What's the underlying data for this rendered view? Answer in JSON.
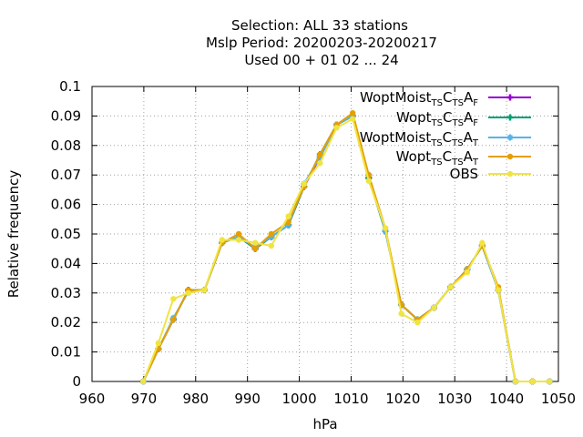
{
  "title_lines": [
    "Selection: ALL      33 stations",
    "Mslp  Period: 20200203-20200217",
    "Used  00 + 01 02 ... 24"
  ],
  "chart_data": {
    "type": "line",
    "xlabel": "hPa",
    "ylabel": "Relative frequency",
    "xlim": [
      960,
      1050
    ],
    "ylim": [
      0,
      0.1
    ],
    "xticks": [
      960,
      970,
      980,
      990,
      1000,
      1010,
      1020,
      1030,
      1040,
      1050
    ],
    "yticks": [
      0,
      0.01,
      0.02,
      0.03,
      0.04,
      0.05,
      0.06,
      0.07,
      0.08,
      0.09,
      0.1
    ],
    "grid": true,
    "legend_position": "top-right",
    "series": [
      {
        "name": "WoptMoist_TSC_TSA_F",
        "legend": {
          "main": "WoptMoist",
          "parts": [
            [
              "TS",
              "sub"
            ],
            [
              "C",
              "main"
            ],
            [
              "TS",
              "sub"
            ],
            [
              "A",
              "main"
            ],
            [
              "F",
              "sub"
            ]
          ]
        },
        "color": "#9400d3",
        "marker": "cross",
        "x": [
          969.9,
          972.8,
          975.7,
          978.6,
          981.7,
          985.1,
          988.3,
          991.5,
          994.6,
          997.9,
          1000.9,
          1004.0,
          1007.2,
          1010.3,
          1013.4,
          1016.6,
          1019.7,
          1022.8,
          1026.0,
          1029.2,
          1032.4,
          1035.3,
          1038.4,
          1041.7,
          1045.0,
          1048.3
        ],
        "y": [
          0.0,
          0.011,
          0.021,
          0.031,
          0.031,
          0.047,
          0.049,
          0.045,
          0.049,
          0.053,
          0.066,
          0.076,
          0.087,
          0.09,
          0.069,
          0.051,
          0.026,
          0.021,
          0.025,
          0.032,
          0.038,
          0.046,
          0.031,
          0.0,
          0.0,
          0.0
        ]
      },
      {
        "name": "Wopt_TSC_TSA_F",
        "legend": {
          "main": "Wopt",
          "parts": [
            [
              "TS",
              "sub"
            ],
            [
              "C",
              "main"
            ],
            [
              "TS",
              "sub"
            ],
            [
              "A",
              "main"
            ],
            [
              "F",
              "sub"
            ]
          ]
        },
        "color": "#009e73",
        "marker": "cross",
        "x": [
          969.9,
          972.8,
          975.7,
          978.6,
          981.7,
          985.1,
          988.3,
          991.5,
          994.6,
          997.9,
          1000.9,
          1004.0,
          1007.2,
          1010.3,
          1013.4,
          1016.6,
          1019.7,
          1022.8,
          1026.0,
          1029.2,
          1032.4,
          1035.3,
          1038.4,
          1041.7,
          1045.0,
          1048.3
        ],
        "y": [
          0.0,
          0.011,
          0.021,
          0.031,
          0.031,
          0.047,
          0.049,
          0.045,
          0.049,
          0.053,
          0.066,
          0.077,
          0.087,
          0.09,
          0.069,
          0.051,
          0.026,
          0.021,
          0.025,
          0.032,
          0.038,
          0.046,
          0.031,
          0.0,
          0.0,
          0.0
        ]
      },
      {
        "name": "WoptMoist_TSC_TSA_T",
        "legend": {
          "main": "WoptMoist",
          "parts": [
            [
              "TS",
              "sub"
            ],
            [
              "C",
              "main"
            ],
            [
              "TS",
              "sub"
            ],
            [
              "A",
              "main"
            ],
            [
              "T",
              "sub"
            ]
          ]
        },
        "color": "#56b4e9",
        "marker": "star",
        "x": [
          969.9,
          972.8,
          975.7,
          978.6,
          981.7,
          985.1,
          988.3,
          991.5,
          994.6,
          997.9,
          1000.9,
          1004.0,
          1007.2,
          1010.3,
          1013.4,
          1016.6,
          1019.7,
          1022.8,
          1026.0,
          1029.2,
          1032.4,
          1035.3,
          1038.4,
          1041.7,
          1045.0,
          1048.3
        ],
        "y": [
          0.0,
          0.011,
          0.0215,
          0.0305,
          0.031,
          0.047,
          0.049,
          0.0455,
          0.049,
          0.053,
          0.067,
          0.076,
          0.087,
          0.09,
          0.07,
          0.051,
          0.026,
          0.021,
          0.025,
          0.032,
          0.038,
          0.046,
          0.031,
          0.0,
          0.0,
          0.0
        ]
      },
      {
        "name": "Wopt_TSC_TSA_T",
        "legend": {
          "main": "Wopt",
          "parts": [
            [
              "TS",
              "sub"
            ],
            [
              "C",
              "main"
            ],
            [
              "TS",
              "sub"
            ],
            [
              "A",
              "main"
            ],
            [
              "T",
              "sub"
            ]
          ]
        },
        "color": "#e69f00",
        "marker": "circle",
        "x": [
          969.9,
          972.8,
          975.7,
          978.6,
          981.7,
          985.1,
          988.3,
          991.5,
          994.6,
          997.9,
          1000.9,
          1004.0,
          1007.2,
          1010.3,
          1013.4,
          1016.6,
          1019.7,
          1022.8,
          1026.0,
          1029.2,
          1032.4,
          1035.3,
          1038.4,
          1041.7,
          1045.0,
          1048.3
        ],
        "y": [
          0.0,
          0.011,
          0.021,
          0.031,
          0.031,
          0.047,
          0.05,
          0.045,
          0.05,
          0.054,
          0.066,
          0.077,
          0.087,
          0.091,
          0.07,
          0.052,
          0.026,
          0.021,
          0.025,
          0.032,
          0.038,
          0.046,
          0.032,
          0.0,
          0.0,
          0.0
        ]
      },
      {
        "name": "OBS",
        "legend": {
          "main": "OBS",
          "parts": []
        },
        "color": "#f0e442",
        "marker": "circle",
        "x": [
          969.9,
          972.8,
          975.7,
          978.6,
          981.7,
          985.1,
          988.3,
          991.5,
          994.6,
          997.9,
          1000.9,
          1004.0,
          1007.2,
          1010.3,
          1013.4,
          1016.6,
          1019.7,
          1022.8,
          1026.0,
          1029.2,
          1032.4,
          1035.3,
          1038.4,
          1041.7,
          1045.0,
          1048.3
        ],
        "y": [
          0.0,
          0.013,
          0.028,
          0.03,
          0.031,
          0.048,
          0.048,
          0.047,
          0.046,
          0.056,
          0.067,
          0.074,
          0.086,
          0.089,
          0.068,
          0.052,
          0.023,
          0.02,
          0.025,
          0.032,
          0.037,
          0.047,
          0.031,
          0.0,
          0.0,
          0.0
        ]
      }
    ]
  }
}
